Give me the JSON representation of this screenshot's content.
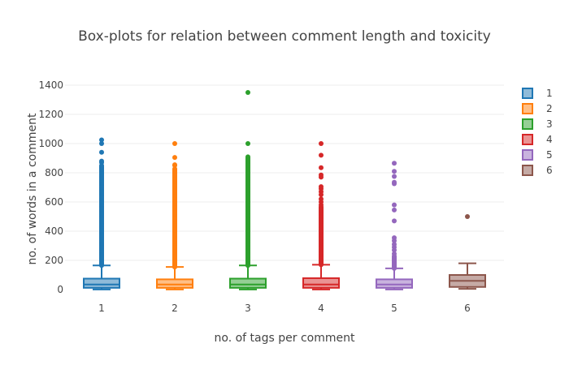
{
  "chart_data": {
    "type": "box",
    "title": "Box-plots for relation between comment length and toxicity",
    "xlabel": "no. of tags per comment",
    "ylabel": "no. of words in a comment",
    "categories": [
      "1",
      "2",
      "3",
      "4",
      "5",
      "6"
    ],
    "ylim": [
      0,
      1450
    ],
    "yticks": [
      0,
      200,
      400,
      600,
      800,
      1000,
      1200,
      1400
    ],
    "grid": true,
    "legend": "right",
    "series": [
      {
        "name": "1",
        "color": "#1f77b4",
        "fill": "#8fbbd9",
        "min": 1,
        "q1": 12,
        "median": 35,
        "q3": 75,
        "whisker_high": 165,
        "outliers_dense_range": [
          165,
          850
        ],
        "outliers": [
          870,
          880,
          940,
          1000,
          1025
        ]
      },
      {
        "name": "2",
        "color": "#ff7f0e",
        "fill": "#ffbf86",
        "min": 1,
        "q1": 12,
        "median": 35,
        "q3": 70,
        "whisker_high": 155,
        "outliers_dense_range": [
          155,
          830
        ],
        "outliers": [
          850,
          855,
          905,
          1000
        ]
      },
      {
        "name": "3",
        "color": "#2ca02c",
        "fill": "#95cf95",
        "min": 1,
        "q1": 12,
        "median": 35,
        "q3": 75,
        "whisker_high": 165,
        "outliers_dense_range": [
          165,
          910
        ],
        "outliers": [
          1000,
          1350
        ]
      },
      {
        "name": "4",
        "color": "#d62728",
        "fill": "#ea9393",
        "min": 1,
        "q1": 12,
        "median": 35,
        "q3": 78,
        "whisker_high": 170,
        "outliers_dense_range": [
          170,
          570
        ],
        "outliers": [
          580,
          600,
          620,
          650,
          670,
          690,
          705,
          770,
          785,
          835,
          920,
          1000
        ]
      },
      {
        "name": "5",
        "color": "#9467bd",
        "fill": "#c9b3de",
        "min": 1,
        "q1": 12,
        "median": 35,
        "q3": 70,
        "whisker_high": 145,
        "outliers_dense_range": [
          145,
          230
        ],
        "outliers": [
          245,
          270,
          290,
          310,
          335,
          355,
          470,
          545,
          580,
          725,
          735,
          775,
          810,
          865
        ]
      },
      {
        "name": "6",
        "color": "#8c564b",
        "fill": "#c5aaa5",
        "min": 5,
        "q1": 18,
        "median": 60,
        "q3": 100,
        "whisker_high": 180,
        "outliers_dense_range": null,
        "outliers": [
          500
        ]
      }
    ]
  }
}
